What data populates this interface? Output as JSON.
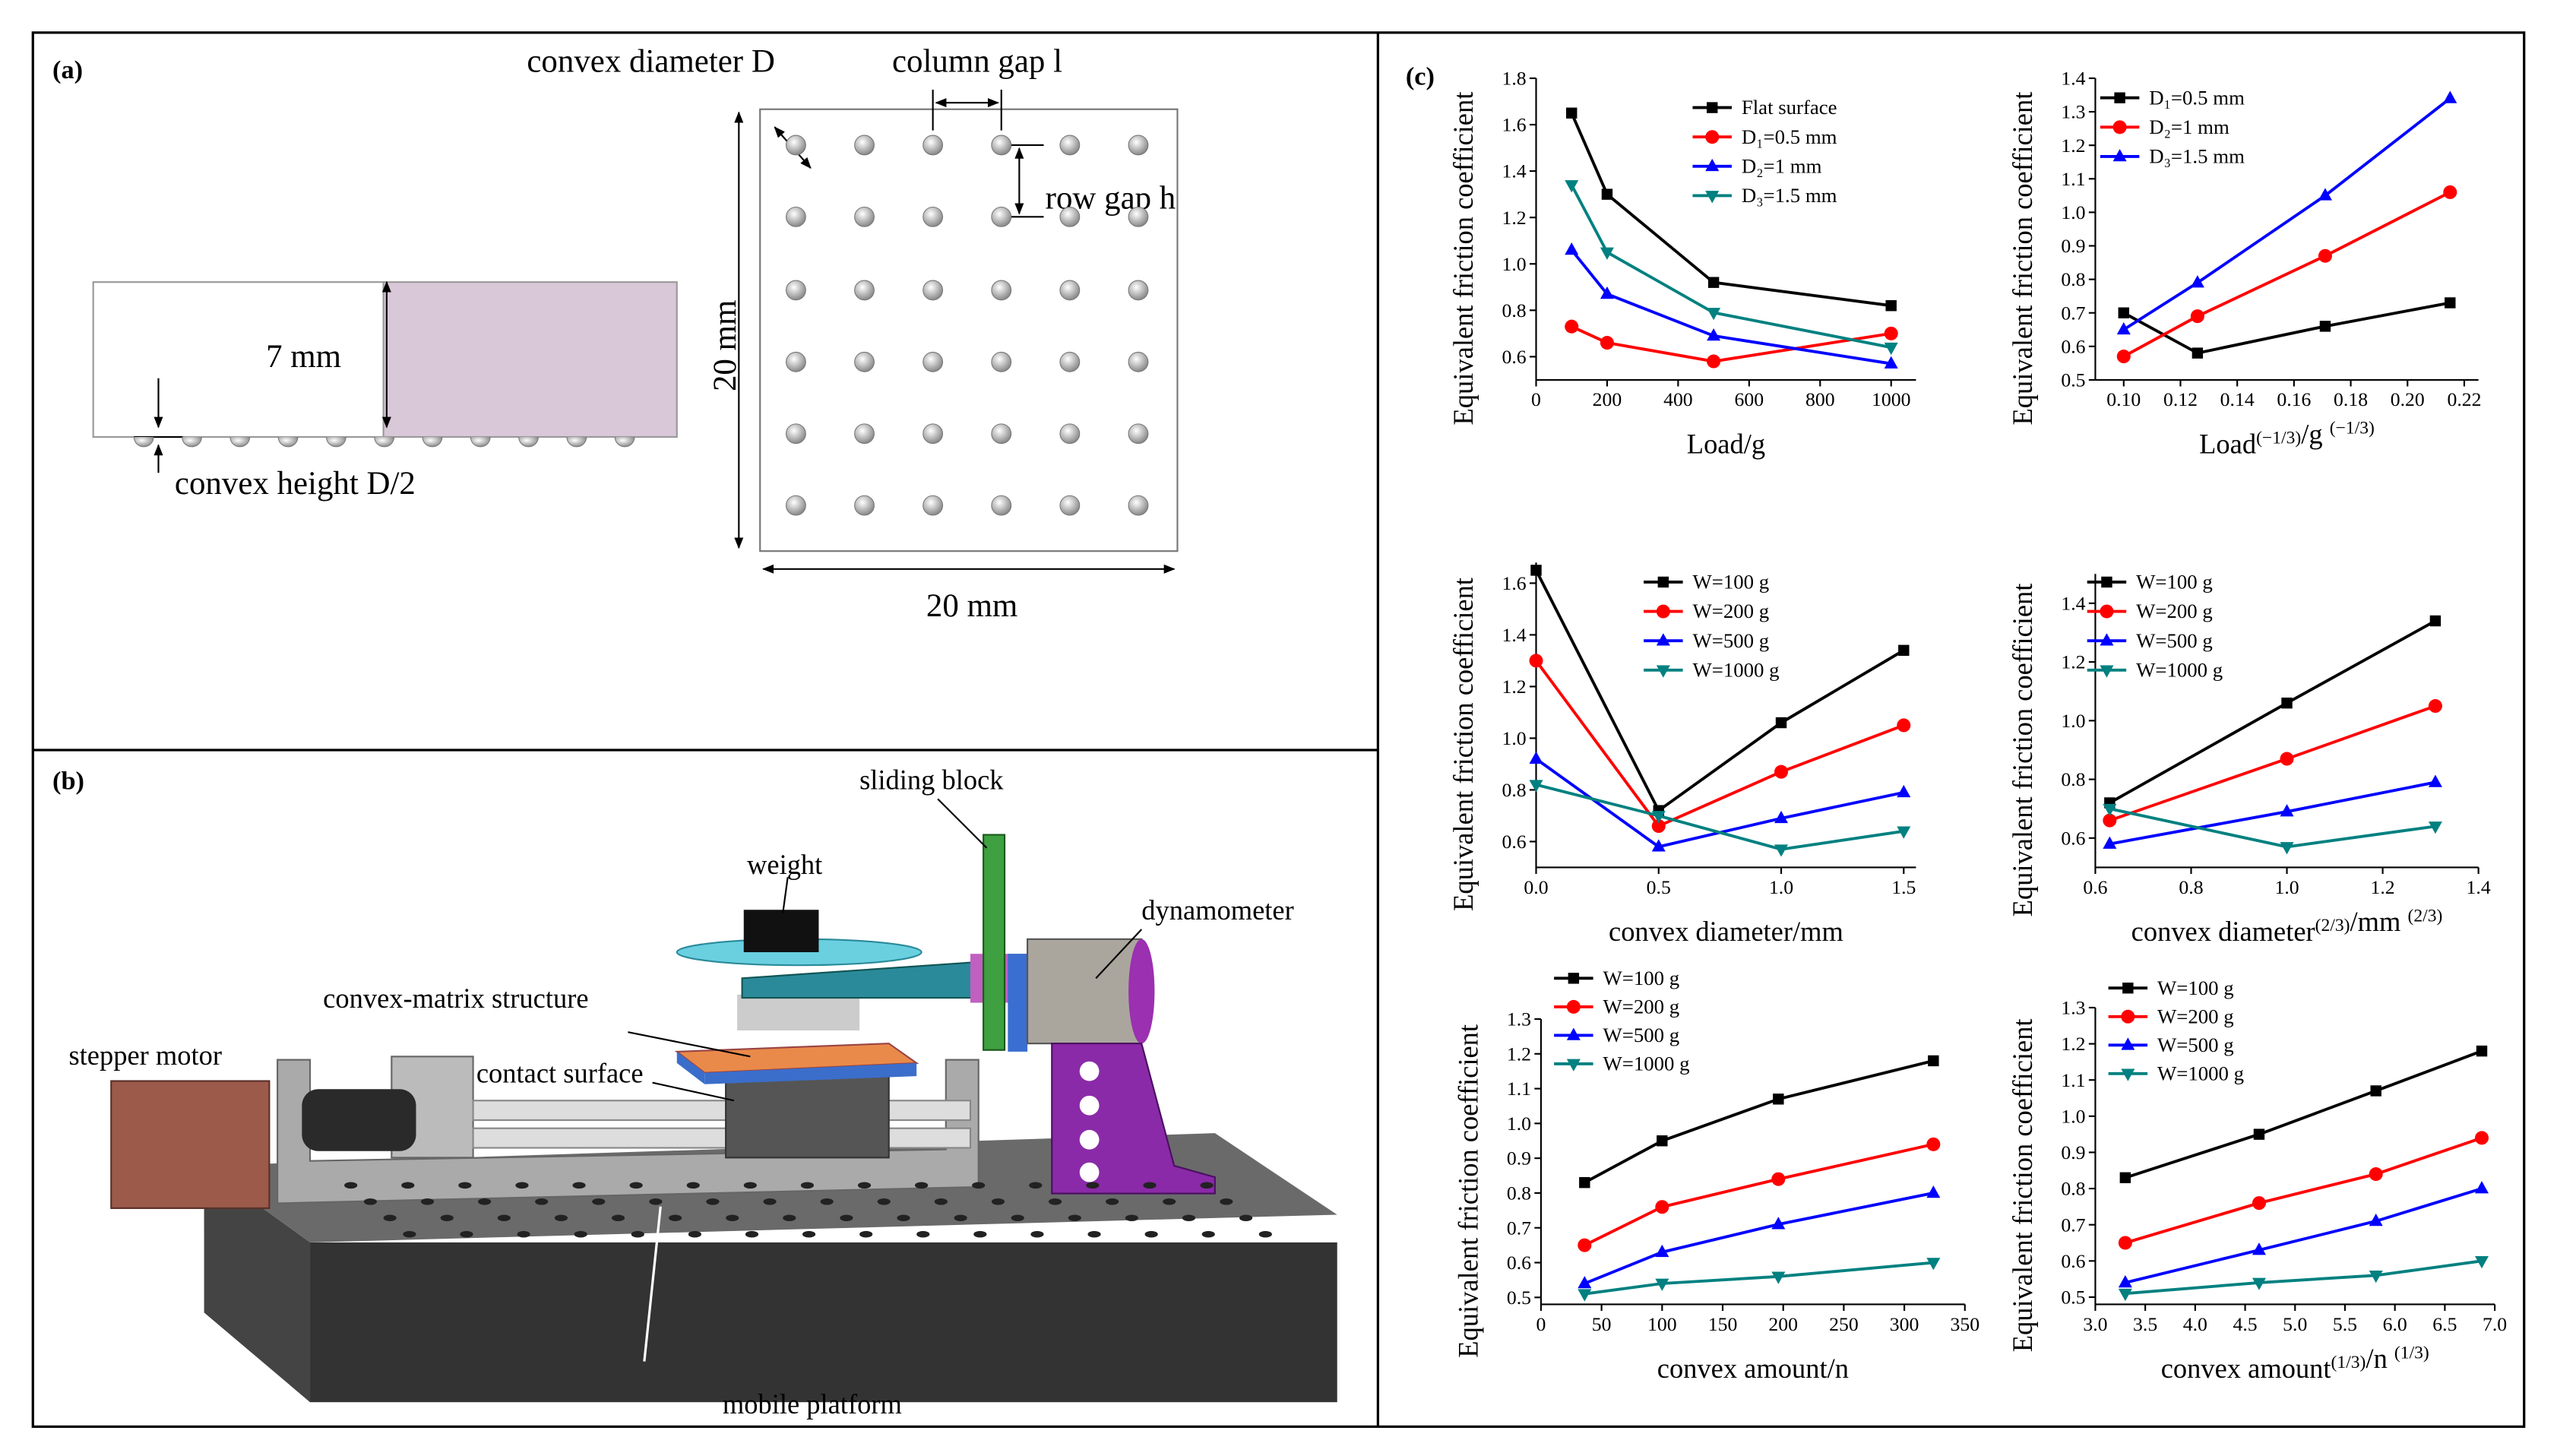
{
  "panels": {
    "a": "(a)",
    "b": "(b)",
    "c": "(c)"
  },
  "diagram_a": {
    "convex_diameter": "convex diameter D",
    "column_gap": "column gap l",
    "row_gap": "row gap h",
    "thickness": "7 mm",
    "convex_height": "convex height D/2",
    "height": "20 mm",
    "width": "20 mm"
  },
  "diagram_b": {
    "sliding_block": "sliding block",
    "weight": "weight",
    "dynamometer": "dynamometer",
    "convex_matrix": "convex-matrix structure",
    "stepper_motor": "stepper motor",
    "contact_surface": "contact surface",
    "mobile_platform": "mobile platform"
  },
  "chart_data": [
    {
      "type": "line",
      "xlabel": "Load/g",
      "ylabel": "Equivalent friction coefficient",
      "xlim": [
        0,
        1070
      ],
      "ylim": [
        0.5,
        1.8
      ],
      "xticks": [
        0,
        200,
        400,
        600,
        800,
        1000
      ],
      "yticks": [
        0.6,
        0.8,
        {
          "value": 1.0,
          "label": "1.0"
        },
        1.2,
        1.4,
        1.6,
        1.8
      ],
      "x": [
        100,
        200,
        500,
        1000
      ],
      "series": [
        {
          "name": "Flat surface",
          "color": "#000000",
          "marker": "square",
          "values": [
            1.65,
            1.3,
            0.92,
            0.82
          ]
        },
        {
          "name": "D₁=0.5 mm",
          "color": "#ff0000",
          "marker": "circle",
          "values": [
            0.73,
            0.66,
            0.58,
            0.7
          ]
        },
        {
          "name": "D₂=1 mm",
          "color": "#0000ff",
          "marker": "triangle-up",
          "values": [
            1.06,
            0.87,
            0.69,
            0.57
          ]
        },
        {
          "name": "D₃=1.5 mm",
          "color": "#008080",
          "marker": "triangle-down",
          "values": [
            1.34,
            1.05,
            0.79,
            0.64
          ]
        }
      ]
    },
    {
      "type": "line",
      "xlabel": "Load(−1/3)/g (−1/3)",
      "ylabel": "Equivalent friction coefficient",
      "xlim": [
        0.09,
        0.225
      ],
      "ylim": [
        0.5,
        1.4
      ],
      "xticks": [
        {
          "value": 0.1,
          "label": "0.10"
        },
        0.12,
        0.14,
        0.16,
        0.18,
        {
          "value": 0.2,
          "label": "0.20"
        },
        0.22
      ],
      "yticks": [
        0.5,
        0.6,
        0.7,
        0.8,
        0.9,
        {
          "value": 1.0,
          "label": "1.0"
        },
        1.1,
        1.2,
        1.3,
        1.4
      ],
      "x": [
        0.1,
        0.126,
        0.171,
        0.215
      ],
      "series": [
        {
          "name": "D₁=0.5 mm",
          "color": "#000000",
          "marker": "square",
          "values": [
            0.7,
            0.58,
            0.66,
            0.73
          ]
        },
        {
          "name": "D₂=1 mm",
          "color": "#ff0000",
          "marker": "circle",
          "values": [
            0.57,
            0.69,
            0.87,
            1.06
          ]
        },
        {
          "name": "D₃=1.5 mm",
          "color": "#0000ff",
          "marker": "triangle-up",
          "values": [
            0.65,
            0.79,
            1.05,
            1.34
          ]
        }
      ]
    },
    {
      "type": "line",
      "xlabel": "convex diameter/mm",
      "ylabel": "Equivalent friction coefficient",
      "xlim": [
        0,
        1.55
      ],
      "ylim": [
        0.5,
        1.68
      ],
      "xticks": [
        {
          "value": 0,
          "label": "0.0"
        },
        0.5,
        {
          "value": 1,
          "label": "1.0"
        },
        1.5
      ],
      "yticks": [
        0.6,
        0.8,
        {
          "value": 1.0,
          "label": "1.0"
        },
        1.2,
        1.4,
        1.6
      ],
      "x": [
        0,
        0.5,
        1,
        1.5
      ],
      "series": [
        {
          "name": "W=100 g",
          "color": "#000000",
          "marker": "square",
          "values": [
            1.65,
            0.72,
            1.06,
            1.34
          ]
        },
        {
          "name": "W=200 g",
          "color": "#ff0000",
          "marker": "circle",
          "values": [
            1.3,
            0.66,
            0.87,
            1.05
          ]
        },
        {
          "name": "W=500 g",
          "color": "#0000ff",
          "marker": "triangle-up",
          "values": [
            0.92,
            0.58,
            0.69,
            0.79
          ]
        },
        {
          "name": "W=1000 g",
          "color": "#008080",
          "marker": "triangle-down",
          "values": [
            0.82,
            0.7,
            0.57,
            0.64
          ]
        }
      ]
    },
    {
      "type": "line",
      "xlabel": "convex diameter(2/3)/mm (2/3)",
      "ylabel": "Equivalent friction coefficient",
      "xlim": [
        0.6,
        1.4
      ],
      "ylim": [
        0.5,
        1.5
      ],
      "xticks": [
        0.6,
        0.8,
        {
          "value": 1,
          "label": "1.0"
        },
        1.2,
        1.4
      ],
      "yticks": [
        0.6,
        0.8,
        {
          "value": 1,
          "label": "1.0"
        },
        1.2,
        1.4
      ],
      "x": [
        0.63,
        1.0,
        1.31
      ],
      "series": [
        {
          "name": "W=100 g",
          "color": "#000000",
          "marker": "square",
          "values": [
            0.72,
            1.06,
            1.34
          ]
        },
        {
          "name": "W=200 g",
          "color": "#ff0000",
          "marker": "circle",
          "values": [
            0.66,
            0.87,
            1.05
          ]
        },
        {
          "name": "W=500 g",
          "color": "#0000ff",
          "marker": "triangle-up",
          "values": [
            0.58,
            0.69,
            0.79
          ]
        },
        {
          "name": "W=1000 g",
          "color": "#008080",
          "marker": "triangle-down",
          "values": [
            0.7,
            0.57,
            0.64
          ]
        }
      ]
    },
    {
      "type": "line",
      "xlabel": "convex amount/n",
      "ylabel": "Equivalent friction coefficient",
      "xlim": [
        0,
        350
      ],
      "ylim": [
        0.48,
        1.3
      ],
      "xticks": [
        0,
        50,
        100,
        150,
        200,
        250,
        300,
        350
      ],
      "yticks": [
        0.5,
        0.6,
        0.7,
        0.8,
        0.9,
        {
          "value": 1,
          "label": "1.0"
        },
        1.1,
        1.2,
        1.3
      ],
      "x": [
        36,
        100,
        196,
        324
      ],
      "series": [
        {
          "name": "W=100 g",
          "color": "#000000",
          "marker": "square",
          "values": [
            0.83,
            0.95,
            1.07,
            1.18
          ]
        },
        {
          "name": "W=200 g",
          "color": "#ff0000",
          "marker": "circle",
          "values": [
            0.65,
            0.76,
            0.84,
            0.94
          ]
        },
        {
          "name": "W=500 g",
          "color": "#0000ff",
          "marker": "triangle-up",
          "values": [
            0.54,
            0.63,
            0.71,
            0.8
          ]
        },
        {
          "name": "W=1000 g",
          "color": "#008080",
          "marker": "triangle-down",
          "values": [
            0.51,
            0.54,
            0.56,
            0.6
          ]
        }
      ]
    },
    {
      "type": "line",
      "xlabel": "convex amount(1/3)/n (1/3)",
      "ylabel": "Equivalent friction coefficient",
      "xlim": [
        3.0,
        7.0
      ],
      "ylim": [
        0.48,
        1.3
      ],
      "xticks": [
        {
          "value": 3,
          "label": "3.0"
        },
        3.5,
        {
          "value": 4,
          "label": "4.0"
        },
        4.5,
        {
          "value": 5,
          "label": "5.0"
        },
        5.5,
        {
          "value": 6,
          "label": "6.0"
        },
        6.5,
        {
          "value": 7,
          "label": "7.0"
        }
      ],
      "yticks": [
        0.5,
        0.6,
        0.7,
        0.8,
        0.9,
        {
          "value": 1,
          "label": "1.0"
        },
        1.1,
        1.2,
        1.3
      ],
      "x": [
        3.3,
        4.64,
        5.81,
        6.87
      ],
      "series": [
        {
          "name": "W=100 g",
          "color": "#000000",
          "marker": "square",
          "values": [
            0.83,
            0.95,
            1.07,
            1.18
          ]
        },
        {
          "name": "W=200 g",
          "color": "#ff0000",
          "marker": "circle",
          "values": [
            0.65,
            0.76,
            0.84,
            0.94
          ]
        },
        {
          "name": "W=500 g",
          "color": "#0000ff",
          "marker": "triangle-up",
          "values": [
            0.54,
            0.63,
            0.71,
            0.8
          ]
        },
        {
          "name": "W=1000 g",
          "color": "#008080",
          "marker": "triangle-down",
          "values": [
            0.51,
            0.54,
            0.56,
            0.6
          ]
        }
      ]
    }
  ]
}
